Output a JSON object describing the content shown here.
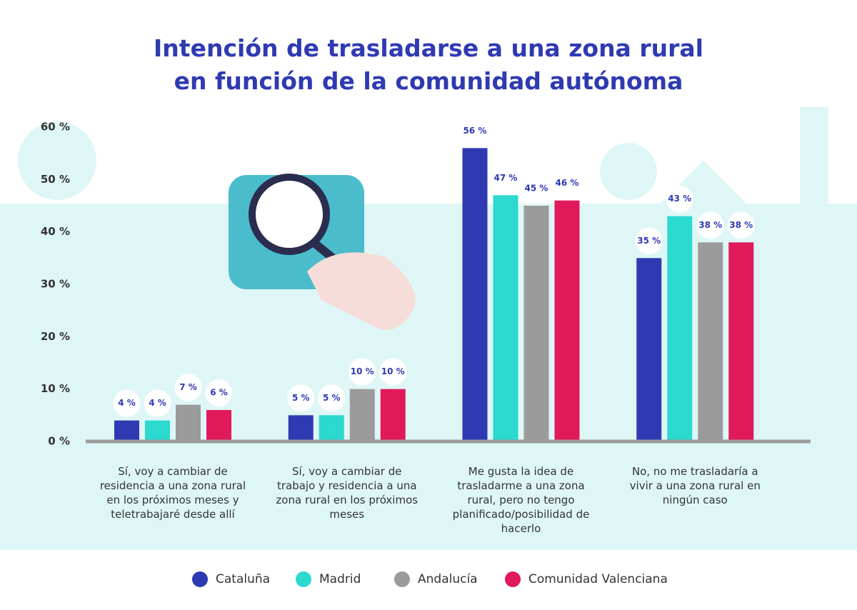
{
  "chart_data": {
    "type": "bar",
    "title": "Intención de trasladarse a una zona rural en función de la comunidad autónoma",
    "categories": [
      "Sí, voy a cambiar de residencia a una zona rural en los próximos meses y teletrabajaré desde allí",
      "Sí, voy a cambiar de trabajo y residencia a una zona rural en los próximos meses",
      "Me gusta la idea de trasladarme a una zona rural, pero no tengo planificado/posibilidad de hacerlo",
      "No, no me trasladaría a vivir a una zona rural en ningún caso"
    ],
    "series": [
      {
        "name": "Cataluña",
        "color": "#2f3ab2",
        "values": [
          4,
          5,
          56,
          35
        ],
        "value_labels": [
          "4 %",
          "5 %",
          "56 %",
          "35 %"
        ]
      },
      {
        "name": "Madrid",
        "color": "#2bd9cf",
        "values": [
          4,
          5,
          47,
          43
        ],
        "value_labels": [
          "4 %",
          "5 %",
          "47 %",
          "43 %"
        ]
      },
      {
        "name": "Andalucía",
        "color": "#9b9b9b",
        "values": [
          7,
          10,
          45,
          38
        ],
        "value_labels": [
          "7 %",
          "10 %",
          "45 %",
          "38 %"
        ]
      },
      {
        "name": "Comunidad Valenciana",
        "color": "#e01a5b",
        "values": [
          6,
          10,
          46,
          38
        ],
        "value_labels": [
          "6 %",
          "10 %",
          "46 %",
          "38 %"
        ]
      }
    ],
    "ylim": [
      0,
      60
    ],
    "yticks": [
      {
        "value": 0,
        "label": "0 %"
      },
      {
        "value": 10,
        "label": "10 %"
      },
      {
        "value": 20,
        "label": "20 %"
      },
      {
        "value": 30,
        "label": "30 %"
      },
      {
        "value": 40,
        "label": "40 %"
      },
      {
        "value": 50,
        "label": "50 %"
      },
      {
        "value": 60,
        "label": "60 %"
      }
    ],
    "legend": "bottom"
  }
}
